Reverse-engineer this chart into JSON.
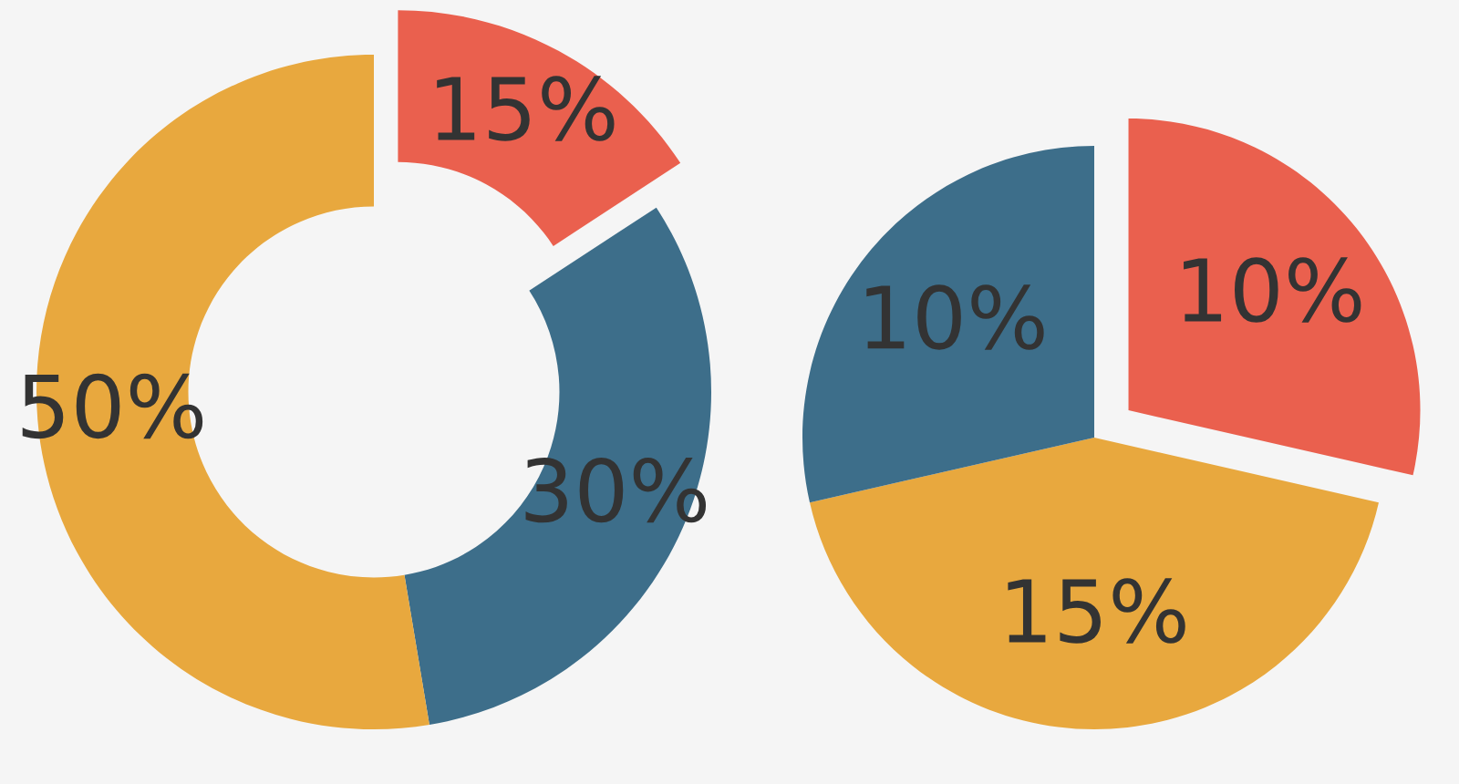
{
  "chart_data": [
    {
      "type": "donut",
      "categories": [
        null,
        null,
        null
      ],
      "values": [
        15,
        30,
        50
      ],
      "colors": [
        "#ea604e",
        "#3d6e8a",
        "#e8a83e"
      ],
      "value_labels": [
        "15%",
        "30%",
        "50%"
      ]
    },
    {
      "type": "pie",
      "categories": [
        null,
        null,
        null
      ],
      "values": [
        10,
        15,
        10
      ],
      "colors": [
        "#ea604e",
        "#e8a83e",
        "#3d6e8a"
      ],
      "value_labels": [
        "10%",
        "15%",
        "10%"
      ]
    }
  ]
}
